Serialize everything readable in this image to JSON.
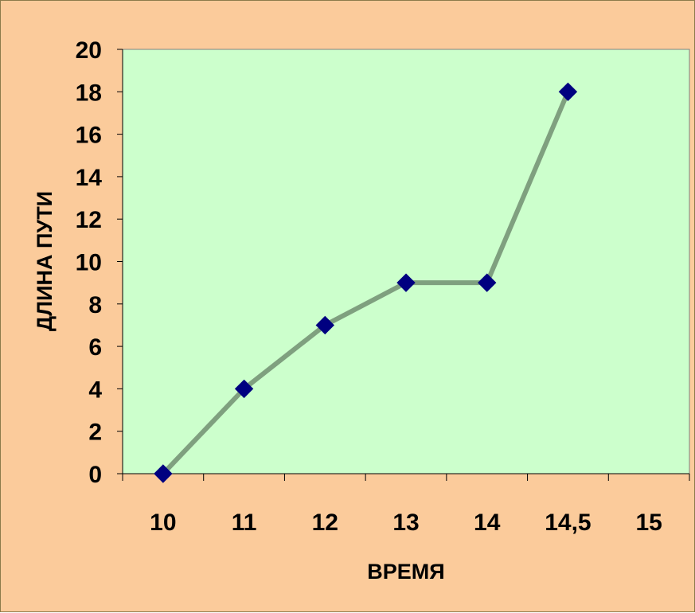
{
  "chart_data": {
    "type": "line",
    "categories": [
      "10",
      "11",
      "12",
      "13",
      "14",
      "14,5",
      "15"
    ],
    "series": [
      {
        "values": [
          0,
          4,
          7,
          9,
          9,
          18,
          null
        ]
      }
    ],
    "xlabel": "ВРЕМЯ",
    "ylabel": "ДЛИНА ПУТИ",
    "ylim": [
      0,
      20
    ],
    "yticks": [
      "0",
      "2",
      "4",
      "6",
      "8",
      "10",
      "12",
      "14",
      "16",
      "18",
      "20"
    ],
    "grid": false,
    "legend": "none"
  },
  "colors": {
    "page_background": "#FBCB9B",
    "plot_background": "#CCFFCC",
    "line": "#7FA07F",
    "marker": "#000080",
    "plot_border": "#808080"
  }
}
